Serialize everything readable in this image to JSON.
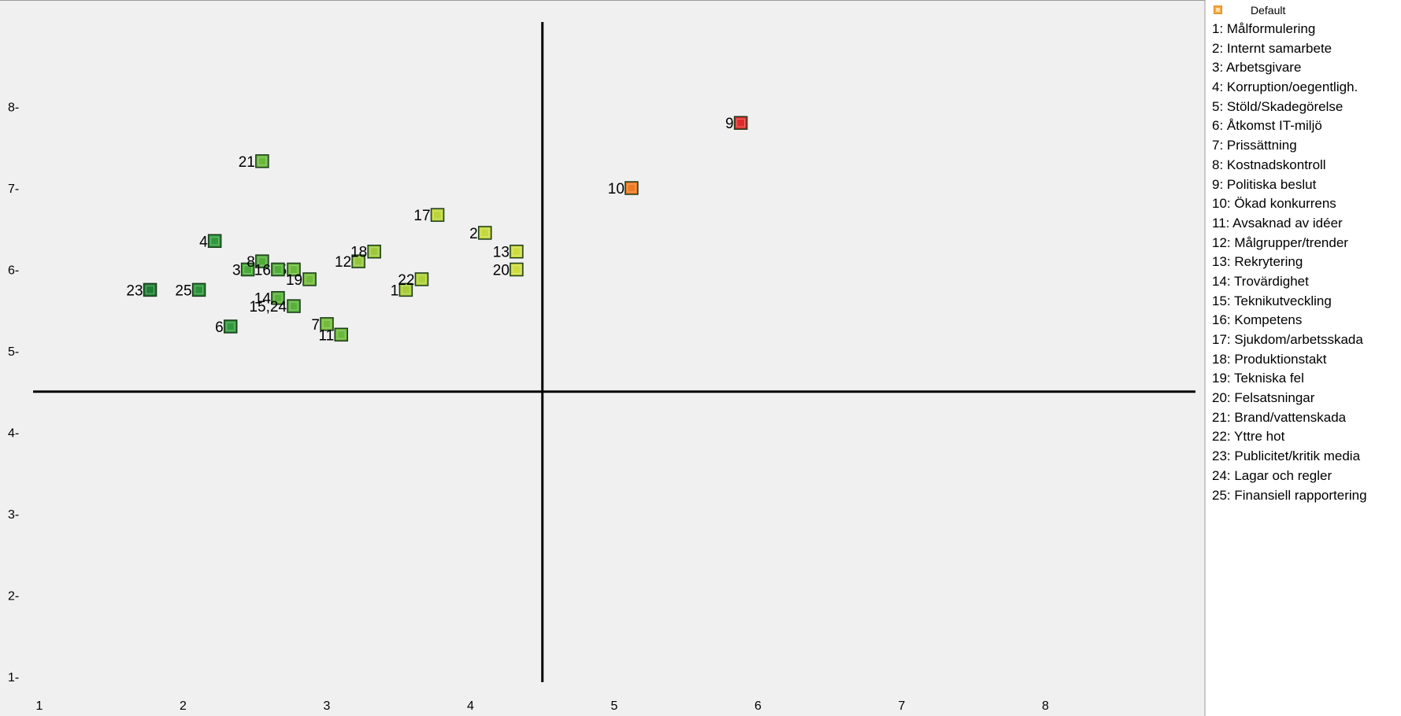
{
  "legend": {
    "title": "Default",
    "items": [
      "1: Målformulering",
      "2: Internt samarbete",
      "3: Arbetsgivare",
      "4: Korruption/oegentligh.",
      "5: Stöld/Skadegörelse",
      "6: Åtkomst IT-miljö",
      "7: Prissättning",
      "8: Kostnadskontroll",
      "9: Politiska beslut",
      "10: Ökad konkurrens",
      "11: Avsaknad av idéer",
      "12: Målgrupper/trender",
      "13: Rekrytering",
      "14: Trovärdighet",
      "15: Teknikutveckling",
      "16: Kompetens",
      "17: Sjukdom/arbetsskada",
      "18: Produktionstakt",
      "19: Tekniska fel",
      "20: Felsatsningar",
      "21: Brand/vattenskada",
      "22: Yttre hot",
      "23: Publicitet/kritik media",
      "24: Lagar och regler",
      "25: Finansiell rapportering"
    ]
  },
  "chart_data": {
    "type": "scatter",
    "xlim": [
      0.95,
      8.1
    ],
    "ylim": [
      0.65,
      8.2
    ],
    "x_ticks": [
      1,
      2,
      3,
      4,
      5,
      6,
      7,
      8
    ],
    "y_ticks": [
      1,
      2,
      3,
      4,
      5,
      6,
      7,
      8
    ],
    "x_tick_labels": [
      "1",
      "2",
      "3",
      "4",
      "5",
      "6",
      "7",
      "8"
    ],
    "y_tick_labels": [
      "1-",
      "2-",
      "3-",
      "4-",
      "5-",
      "6-",
      "7-",
      "8-"
    ],
    "reference_lines": {
      "x": 4.5,
      "y": 4.5
    },
    "points": [
      {
        "label": "1",
        "x": 3.55,
        "y": 5.75,
        "color": "#a8cc38"
      },
      {
        "label": "2",
        "x": 4.1,
        "y": 6.45,
        "color": "#c6d83a"
      },
      {
        "label": "3",
        "x": 2.45,
        "y": 6.0,
        "color": "#4aa83a"
      },
      {
        "label": "4",
        "x": 2.22,
        "y": 6.35,
        "color": "#2f9a3c"
      },
      {
        "label": "5",
        "x": 2.77,
        "y": 6.0,
        "color": "#6ab83a"
      },
      {
        "label": "6",
        "x": 2.33,
        "y": 5.3,
        "color": "#2f9a3c"
      },
      {
        "label": "7",
        "x": 3.0,
        "y": 5.33,
        "color": "#74bc38"
      },
      {
        "label": "8",
        "x": 2.55,
        "y": 6.1,
        "color": "#52ac3a"
      },
      {
        "label": "9",
        "x": 5.88,
        "y": 7.8,
        "color": "#e02a2a"
      },
      {
        "label": "10",
        "x": 5.12,
        "y": 7.0,
        "color": "#ee7a22"
      },
      {
        "label": "11",
        "x": 3.1,
        "y": 5.2,
        "color": "#6ab83a"
      },
      {
        "label": "12",
        "x": 3.22,
        "y": 6.1,
        "color": "#94c63a"
      },
      {
        "label": "13",
        "x": 4.32,
        "y": 6.22,
        "color": "#cedc3c"
      },
      {
        "label": "14",
        "x": 2.66,
        "y": 5.65,
        "color": "#58b03a"
      },
      {
        "label": "15,24",
        "x": 2.77,
        "y": 5.55,
        "color": "#58b03a"
      },
      {
        "label": "16",
        "x": 2.66,
        "y": 6.0,
        "color": "#52ac3a"
      },
      {
        "label": "17",
        "x": 3.77,
        "y": 6.67,
        "color": "#bcd43a"
      },
      {
        "label": "18",
        "x": 3.33,
        "y": 6.22,
        "color": "#9cc83a"
      },
      {
        "label": "19",
        "x": 2.88,
        "y": 5.88,
        "color": "#72ba3a"
      },
      {
        "label": "20",
        "x": 4.32,
        "y": 6.0,
        "color": "#cedc3c"
      },
      {
        "label": "21",
        "x": 2.55,
        "y": 7.33,
        "color": "#6ab83a"
      },
      {
        "label": "22",
        "x": 3.66,
        "y": 5.88,
        "color": "#aed03a"
      },
      {
        "label": "23",
        "x": 1.77,
        "y": 5.75,
        "color": "#1e7f34"
      },
      {
        "label": "25",
        "x": 2.11,
        "y": 5.75,
        "color": "#2a9338"
      }
    ]
  }
}
